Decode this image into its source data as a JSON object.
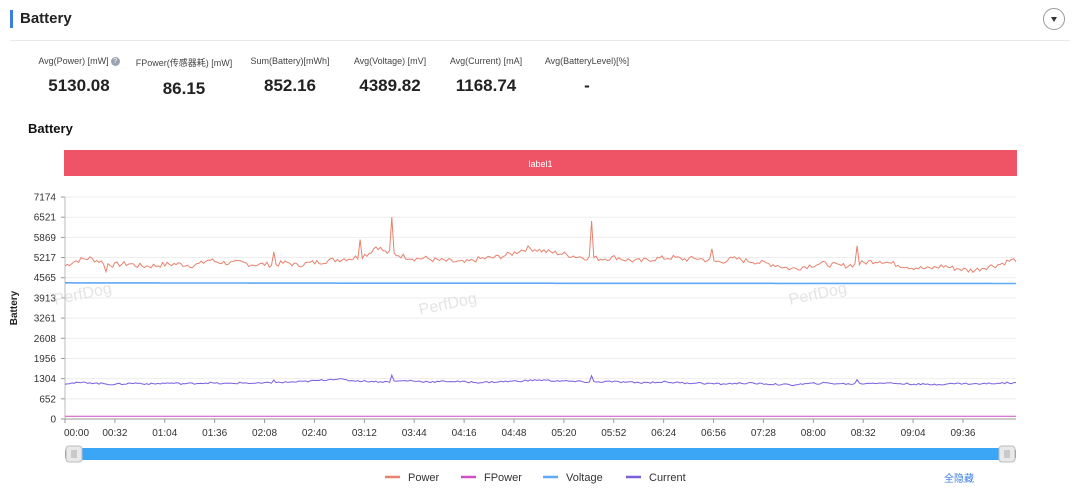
{
  "header": {
    "title": "Battery"
  },
  "stats": [
    {
      "label": "Avg(Power) [mW]",
      "value": "5130.08",
      "help": true
    },
    {
      "label": "FPower(传感器耗) [mW]",
      "value": "86.15"
    },
    {
      "label": "Sum(Battery)[mWh]",
      "value": "852.16"
    },
    {
      "label": "Avg(Voltage) [mV]",
      "value": "4389.82"
    },
    {
      "label": "Avg(Current) [mA]",
      "value": "1168.74"
    },
    {
      "label": "Avg(BatteryLevel)[%]",
      "value": "-"
    }
  ],
  "section_title": "Battery",
  "hide_all_label": "全隐藏",
  "colors": {
    "power": "#e8826e",
    "fpower": "#d14fc4",
    "voltage": "#60a8f8",
    "current": "#7b5fe0",
    "label_band": "#ef5466",
    "accent": "#3d7fe0"
  },
  "chart_data": {
    "type": "line",
    "title": "",
    "ylabel": "Battery",
    "xlabel": "",
    "band_label": "label1",
    "ylim": [
      0,
      7174
    ],
    "y_ticks": [
      0,
      652,
      1304,
      1956,
      2608,
      3261,
      3913,
      4565,
      5217,
      5869,
      6521,
      7174
    ],
    "x_ticks": [
      "00:00",
      "00:32",
      "01:04",
      "01:36",
      "02:08",
      "02:40",
      "03:12",
      "03:44",
      "04:16",
      "04:48",
      "05:20",
      "05:52",
      "06:24",
      "06:56",
      "07:28",
      "08:00",
      "08:32",
      "09:04",
      "09:36"
    ],
    "x_range_seconds": [
      0,
      610
    ],
    "watermark": "PerfDog",
    "legend_position": "bottom",
    "series": [
      {
        "name": "Power",
        "key": "power",
        "values": [
          4950,
          5080,
          5150,
          5200,
          5120,
          5050,
          4980,
          5000,
          5020,
          4960,
          4940,
          4950,
          4980,
          5000,
          5010,
          4990,
          4960,
          5020,
          5150,
          5080,
          5050,
          5030,
          5060,
          5010,
          4990,
          5000,
          4980,
          5030,
          5050,
          4960,
          5020,
          5050,
          5080,
          5120,
          5150,
          5180,
          5200,
          5250,
          5350,
          5600,
          5400,
          5350,
          5280,
          5220,
          5180,
          5200,
          5150,
          5120,
          5100,
          5080,
          5050,
          5120,
          5180,
          5200,
          5230,
          5280,
          5350,
          5450,
          5520,
          5480,
          5420,
          5380,
          5350,
          5300,
          5250,
          5220,
          5210,
          5180,
          5200,
          5230,
          5150,
          5120,
          5100,
          5150,
          5180,
          5200,
          5220,
          5180,
          5160,
          5200,
          5150,
          5100,
          5080,
          5150,
          5180,
          5120,
          5100,
          5050,
          5020,
          4980,
          4900,
          4850,
          4900,
          4950,
          5000,
          5020,
          4980,
          4950,
          4960,
          5000,
          5050,
          5100,
          5120,
          5050,
          5000,
          4950,
          4900,
          4880,
          4850,
          4900,
          4950,
          4880,
          4850,
          4800,
          4820,
          4900,
          4950,
          5000,
          5100,
          5150
        ],
        "spikes": [
          [
            5,
            4760
          ],
          [
            26,
            5400
          ],
          [
            37,
            5800
          ],
          [
            41,
            6521
          ],
          [
            66,
            6400
          ],
          [
            81,
            5500
          ],
          [
            99,
            5600
          ]
        ]
      },
      {
        "name": "FPower",
        "key": "fpower",
        "values": [
          86,
          86
        ]
      },
      {
        "name": "Voltage",
        "key": "voltage",
        "values": [
          4400,
          4395,
          4390,
          4388,
          4386,
          4384,
          4382,
          4380
        ]
      },
      {
        "name": "Current",
        "key": "current",
        "values": [
          1150,
          1160,
          1170,
          1180,
          1150,
          1140,
          1120,
          1130,
          1150,
          1160,
          1140,
          1130,
          1150,
          1160,
          1150,
          1140,
          1150,
          1160,
          1170,
          1150,
          1140,
          1150,
          1170,
          1160,
          1150,
          1160,
          1170,
          1180,
          1190,
          1200,
          1210,
          1230,
          1250,
          1280,
          1300,
          1260,
          1240,
          1230,
          1220,
          1210,
          1200,
          1210,
          1230,
          1240,
          1220,
          1210,
          1200,
          1210,
          1220,
          1210,
          1200,
          1190,
          1180,
          1190,
          1200,
          1210,
          1220,
          1230,
          1240,
          1260,
          1250,
          1240,
          1230,
          1220,
          1210,
          1200,
          1190,
          1200,
          1210,
          1200,
          1190,
          1180,
          1170,
          1180,
          1190,
          1200,
          1180,
          1170,
          1160,
          1170,
          1150,
          1140,
          1130,
          1140,
          1150,
          1160,
          1150,
          1140,
          1130,
          1120,
          1110,
          1100,
          1120,
          1140,
          1150,
          1160,
          1150,
          1140,
          1130,
          1140,
          1150,
          1160,
          1170,
          1160,
          1150,
          1140,
          1130,
          1120,
          1110,
          1120,
          1130,
          1140,
          1150,
          1140,
          1130,
          1140,
          1150,
          1160,
          1170,
          1160
        ],
        "spikes": [
          [
            26,
            1260
          ],
          [
            41,
            1420
          ],
          [
            66,
            1400
          ],
          [
            99,
            1270
          ]
        ]
      }
    ]
  }
}
